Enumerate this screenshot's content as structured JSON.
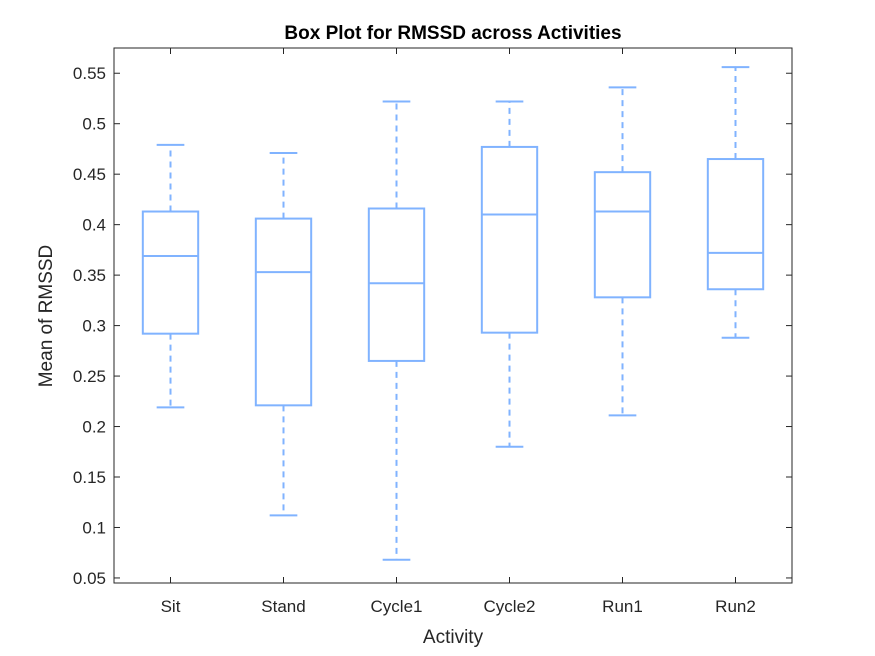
{
  "chart_data": {
    "type": "box",
    "title": "Box Plot for RMSSD across Activities",
    "xlabel": "Activity",
    "ylabel": "Mean of RMSSD",
    "ylim": [
      0.045,
      0.575
    ],
    "yticks": [
      0.05,
      0.1,
      0.15,
      0.2,
      0.25,
      0.3,
      0.35,
      0.4,
      0.45,
      0.5,
      0.55
    ],
    "ytick_labels": [
      "0.05",
      "0.1",
      "0.15",
      "0.2",
      "0.25",
      "0.3",
      "0.35",
      "0.4",
      "0.45",
      "0.5",
      "0.55"
    ],
    "grid": false,
    "color": "#80B3FF",
    "categories": [
      "Sit",
      "Stand",
      "Cycle1",
      "Cycle2",
      "Run1",
      "Run2"
    ],
    "boxes": [
      {
        "whisker_low": 0.219,
        "q1": 0.292,
        "median": 0.369,
        "q3": 0.413,
        "whisker_high": 0.479
      },
      {
        "whisker_low": 0.112,
        "q1": 0.221,
        "median": 0.353,
        "q3": 0.406,
        "whisker_high": 0.471
      },
      {
        "whisker_low": 0.068,
        "q1": 0.265,
        "median": 0.342,
        "q3": 0.416,
        "whisker_high": 0.522
      },
      {
        "whisker_low": 0.18,
        "q1": 0.293,
        "median": 0.41,
        "q3": 0.477,
        "whisker_high": 0.522
      },
      {
        "whisker_low": 0.211,
        "q1": 0.328,
        "median": 0.413,
        "q3": 0.452,
        "whisker_high": 0.536
      },
      {
        "whisker_low": 0.288,
        "q1": 0.336,
        "median": 0.372,
        "q3": 0.465,
        "whisker_high": 0.556
      }
    ]
  }
}
